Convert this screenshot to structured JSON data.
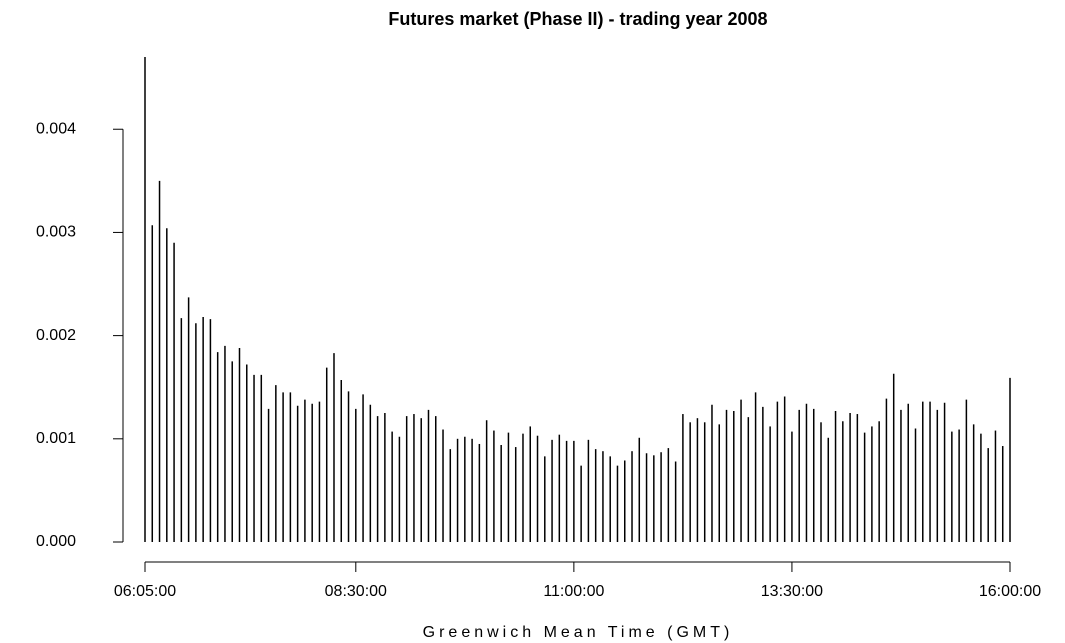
{
  "chart_data": {
    "type": "bar",
    "title": "Futures market (Phase II) - trading year 2008",
    "x_label": "Greenwich Mean Time (GMT)",
    "categories": [
      "06:05:00",
      null,
      null,
      null,
      null,
      null,
      null,
      null,
      null,
      null,
      null,
      null,
      null,
      null,
      null,
      null,
      null,
      null,
      null,
      null,
      null,
      null,
      null,
      null,
      null,
      null,
      null,
      null,
      null,
      "08:30:00",
      null,
      null,
      null,
      null,
      null,
      null,
      null,
      null,
      null,
      null,
      null,
      null,
      null,
      null,
      null,
      null,
      null,
      null,
      null,
      null,
      null,
      null,
      null,
      null,
      null,
      null,
      null,
      null,
      null,
      "11:00:00",
      null,
      null,
      null,
      null,
      null,
      null,
      null,
      null,
      null,
      null,
      null,
      null,
      null,
      null,
      null,
      null,
      null,
      null,
      null,
      null,
      null,
      null,
      null,
      null,
      null,
      null,
      null,
      null,
      null,
      "13:30:00",
      null,
      null,
      null,
      null,
      null,
      null,
      null,
      null,
      null,
      null,
      null,
      null,
      null,
      null,
      null,
      null,
      null,
      null,
      null,
      null,
      null,
      null,
      null,
      null,
      null,
      null,
      null,
      null,
      null,
      "16:00:00"
    ],
    "values": [
      0.0047,
      0.00307,
      0.0035,
      0.00304,
      0.0029,
      0.00217,
      0.00237,
      0.00212,
      0.00218,
      0.00216,
      0.00184,
      0.0019,
      0.00175,
      0.00188,
      0.00172,
      0.00162,
      0.00162,
      0.00129,
      0.00152,
      0.00145,
      0.00145,
      0.00132,
      0.00138,
      0.00134,
      0.00136,
      0.00169,
      0.00183,
      0.00157,
      0.00146,
      0.00129,
      0.00143,
      0.00133,
      0.00122,
      0.00125,
      0.00107,
      0.00102,
      0.00122,
      0.00124,
      0.0012,
      0.00128,
      0.00122,
      0.00109,
      0.0009,
      0.001,
      0.00102,
      0.001,
      0.00095,
      0.00118,
      0.00108,
      0.00094,
      0.00106,
      0.00092,
      0.00105,
      0.00112,
      0.00103,
      0.00083,
      0.00099,
      0.00104,
      0.00098,
      0.00098,
      0.00074,
      0.00099,
      0.0009,
      0.00088,
      0.00083,
      0.00074,
      0.00079,
      0.00088,
      0.00101,
      0.00086,
      0.00084,
      0.00087,
      0.00091,
      0.00078,
      0.00124,
      0.00116,
      0.0012,
      0.00116,
      0.00133,
      0.00114,
      0.00128,
      0.00127,
      0.00138,
      0.00121,
      0.00145,
      0.00131,
      0.00112,
      0.00136,
      0.00141,
      0.00107,
      0.00128,
      0.00134,
      0.00129,
      0.00116,
      0.00101,
      0.00127,
      0.00117,
      0.00125,
      0.00124,
      0.00106,
      0.00112,
      0.00117,
      0.00139,
      0.00163,
      0.00128,
      0.00134,
      0.0011,
      0.00136,
      0.00136,
      0.00128,
      0.00135,
      0.00107,
      0.00109,
      0.00138,
      0.00114,
      0.00105,
      0.00091,
      0.00108,
      0.00093,
      0.00159
    ],
    "color": "#000000",
    "ylim": [
      0,
      0.0047
    ],
    "yticks": [
      {
        "value": 0,
        "label": "0.000"
      },
      0.001,
      0.002,
      0.003,
      0.004
    ]
  }
}
